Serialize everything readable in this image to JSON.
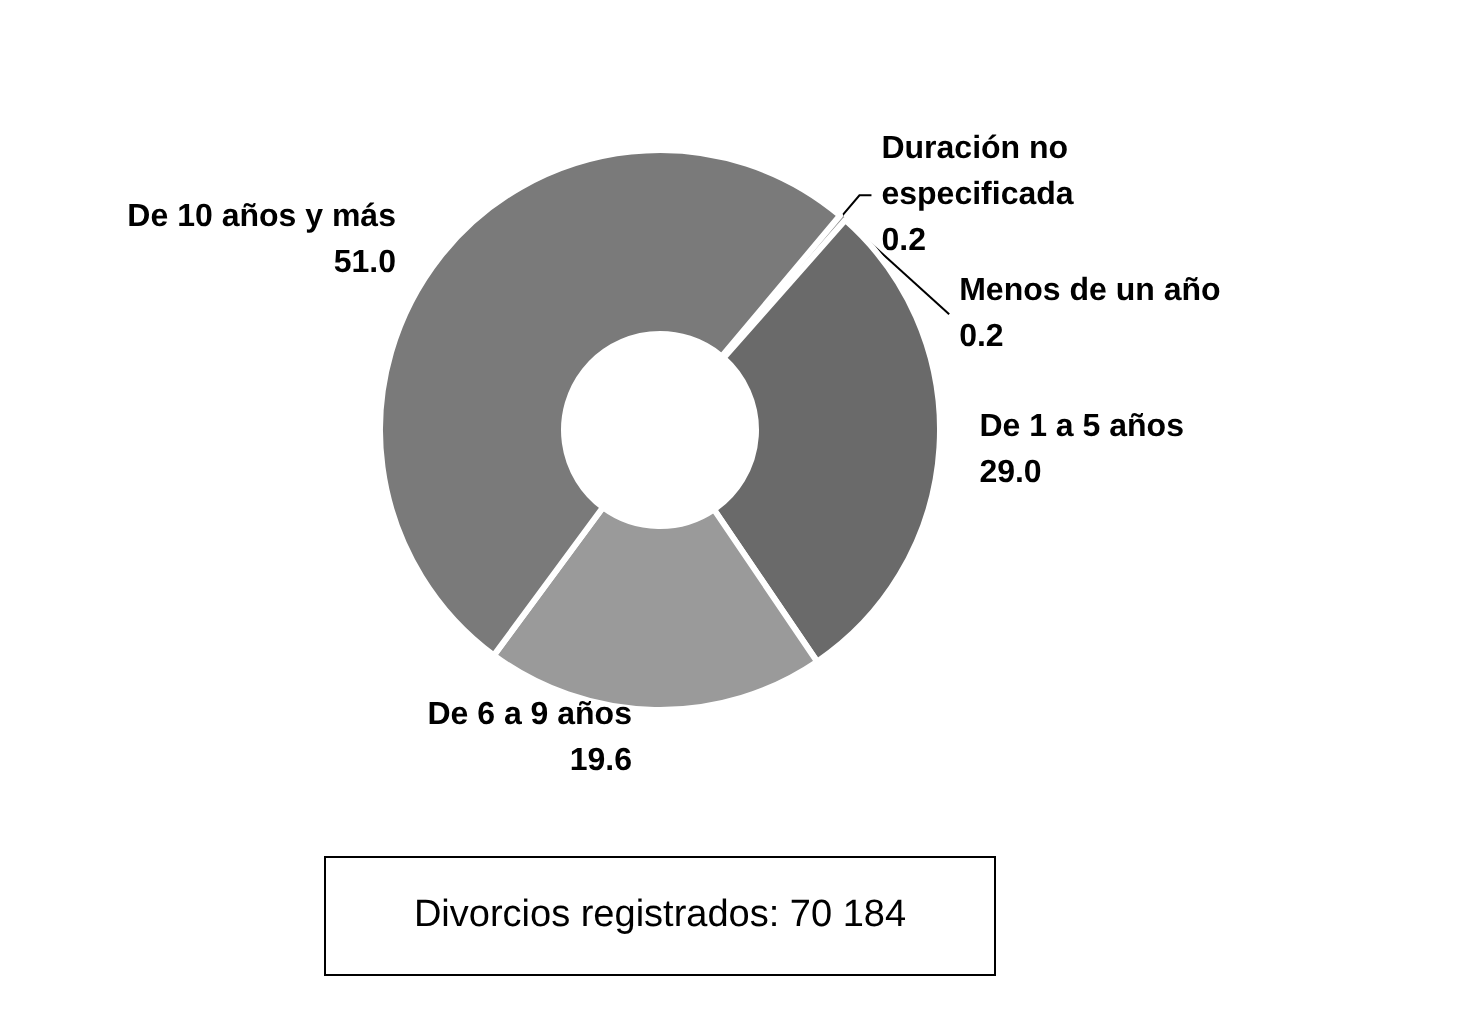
{
  "chart_data": {
    "type": "donut",
    "categories": [
      "Duración no especificada",
      "Menos de un año",
      "De 1 a 5 años",
      "De 6 a 9 años",
      "De 10 años y más"
    ],
    "values": [
      0.2,
      0.2,
      29.0,
      19.6,
      51.0
    ],
    "value_labels": [
      "0.2",
      "0.2",
      "29.0",
      "19.6",
      "51.0"
    ],
    "colors": [
      "#3a3a3a",
      "#8c8c8c",
      "#6a6a6a",
      "#9a9a9a",
      "#7a7a7a"
    ],
    "legend": false,
    "annotations": [
      "Divorcios registrados: 70 184"
    ]
  }
}
